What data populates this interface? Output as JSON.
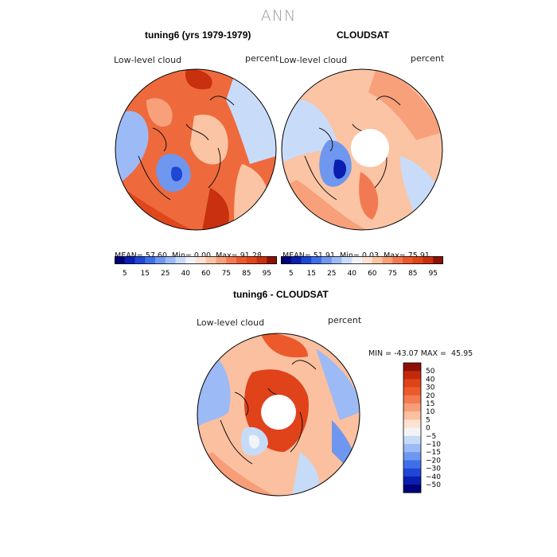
{
  "season": "ANN",
  "panels": [
    {
      "id": "model",
      "title": "tuning6 (yrs 1979-1979)",
      "variable": "Low-level cloud",
      "units": "percent",
      "mean": "57.60",
      "min": "0.00",
      "max": "91.28",
      "polar_hole": false
    },
    {
      "id": "obs",
      "title": "CLOUDSAT",
      "variable": "Low-level cloud",
      "units": "percent",
      "mean": "51.91",
      "min": "0.03",
      "max": "75.91",
      "polar_hole": true
    },
    {
      "id": "diff",
      "title": "tuning6 - CLOUDSAT",
      "variable": "Low-level cloud",
      "units": "percent",
      "min": "-43.07",
      "max": "45.95",
      "polar_hole": true
    }
  ],
  "stat_labels": {
    "mean": "MEAN=",
    "min": "Min=",
    "max": "Max="
  },
  "diff_stat_labels": {
    "min": "MIN =",
    "max": "MAX ="
  },
  "abs_colorbar": {
    "colors": [
      "#00007a",
      "#0a1fb0",
      "#1f47d6",
      "#3f6fe8",
      "#6f97f0",
      "#9cbaf5",
      "#c8dcfa",
      "#f0f3f8",
      "#fde2d2",
      "#fbc4a4",
      "#f7a07a",
      "#f27a52",
      "#eb5a2e",
      "#e0461c",
      "#c83010",
      "#8c1005"
    ],
    "ticks": [
      "5",
      "15",
      "25",
      "40",
      "60",
      "75",
      "85",
      "95"
    ]
  },
  "diff_colorbar": {
    "levels": [
      "50",
      "40",
      "30",
      "20",
      "15",
      "10",
      "5",
      "0",
      "−5",
      "−10",
      "−15",
      "−20",
      "−30",
      "−40",
      "−50"
    ],
    "colors": [
      "#8c1005",
      "#c32a0d",
      "#e0421a",
      "#ec5a2c",
      "#f27b50",
      "#f79d78",
      "#fbc0a0",
      "#fde2d2",
      "#f3f4f6",
      "#c6dbf8",
      "#9cbaf5",
      "#6f97f0",
      "#3f6fe8",
      "#1f47d6",
      "#0a1fb0",
      "#00007a"
    ]
  }
}
